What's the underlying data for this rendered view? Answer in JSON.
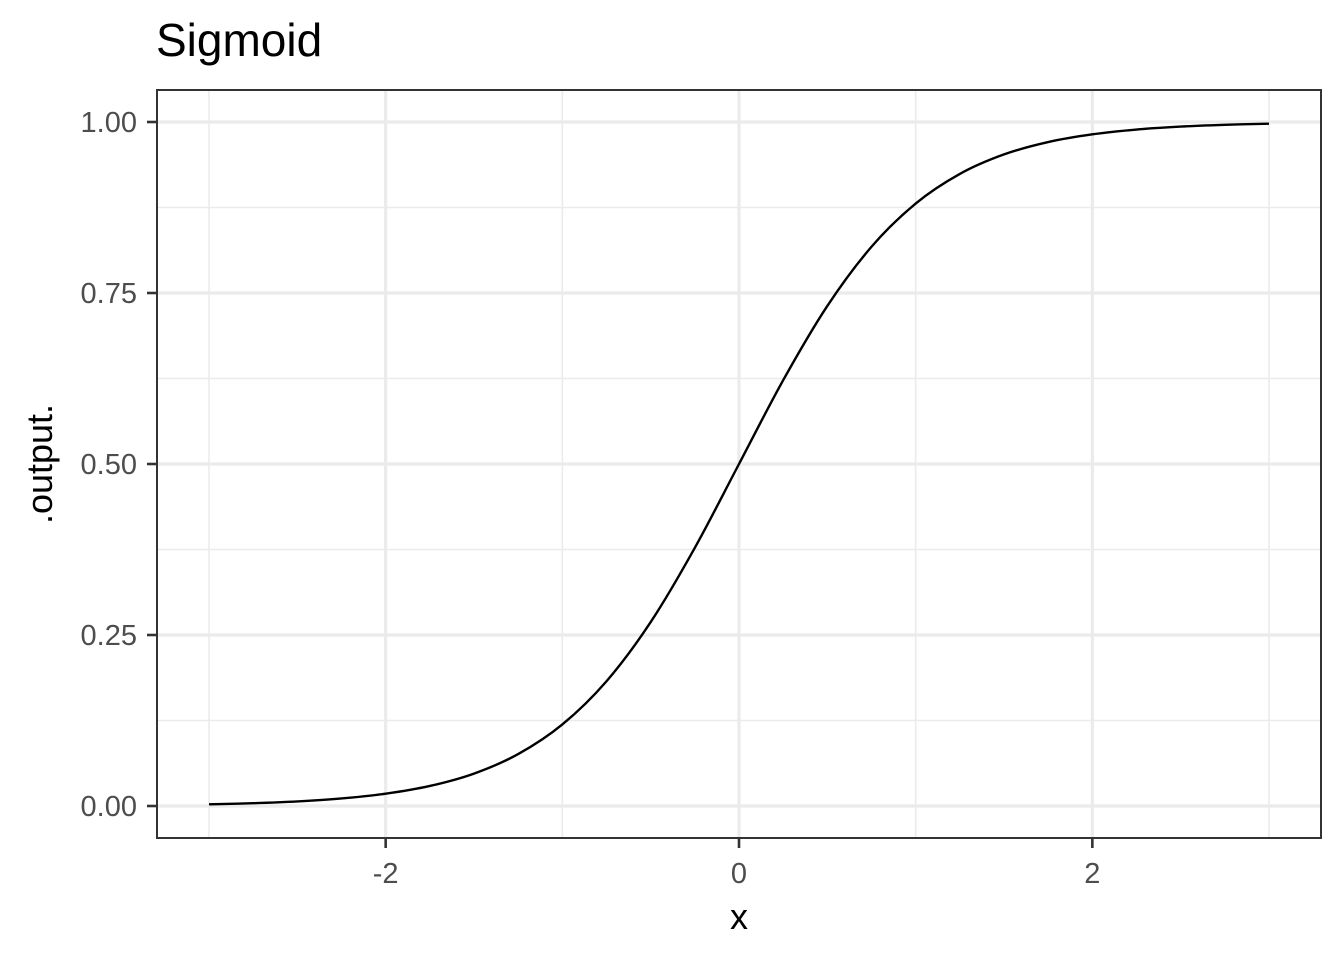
{
  "chart_data": {
    "type": "line",
    "title": "Sigmoid",
    "xlabel": "x",
    "ylabel": ".output.",
    "xlim": [
      -3,
      3
    ],
    "ylim": [
      0,
      1
    ],
    "x_ticks": [
      -2,
      0,
      2
    ],
    "x_tick_labels": [
      "-2",
      "0",
      "2"
    ],
    "x_minor_ticks": [
      -3,
      -1,
      1,
      3
    ],
    "y_ticks": [
      0,
      0.25,
      0.5,
      0.75,
      1
    ],
    "y_tick_labels": [
      "0.00",
      "0.25",
      "0.50",
      "0.75",
      "1.00"
    ],
    "y_minor_ticks": [
      0.125,
      0.375,
      0.625,
      0.875
    ],
    "grid": true,
    "series": [
      {
        "color": "#000000",
        "x": [
          -3,
          -2.75,
          -2.5,
          -2.25,
          -2,
          -1.75,
          -1.5,
          -1.25,
          -1,
          -0.75,
          -0.5,
          -0.25,
          0,
          0.25,
          0.5,
          0.75,
          1,
          1.25,
          1.5,
          1.75,
          2,
          2.25,
          2.5,
          2.75,
          3
        ],
        "y": [
          0.0025,
          0.0041,
          0.0067,
          0.011,
          0.018,
          0.0293,
          0.0474,
          0.0759,
          0.1192,
          0.1824,
          0.2689,
          0.3775,
          0.5,
          0.6225,
          0.7311,
          0.8176,
          0.8808,
          0.9241,
          0.9526,
          0.9707,
          0.982,
          0.989,
          0.9933,
          0.9959,
          0.9975
        ]
      }
    ]
  }
}
